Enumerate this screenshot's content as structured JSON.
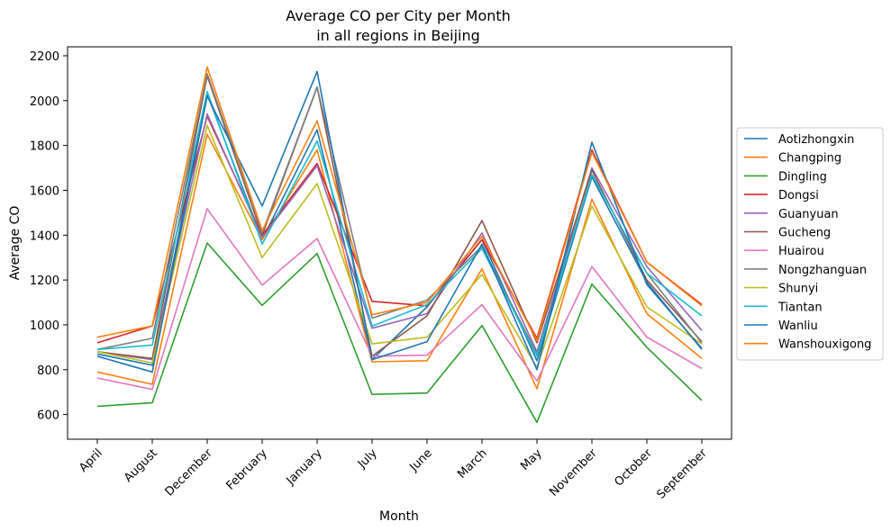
{
  "chart_data": {
    "type": "line",
    "title": "Average CO per City per Month",
    "subtitle": "in all regions in Beijing",
    "xlabel": "Month",
    "ylabel": "Average CO",
    "ylim": [
      490,
      2240
    ],
    "yticks": [
      600,
      800,
      1000,
      1200,
      1400,
      1600,
      1800,
      2000,
      2200
    ],
    "grid": false,
    "legend_position": "right",
    "categories": [
      "April",
      "August",
      "December",
      "February",
      "January",
      "July",
      "June",
      "March",
      "May",
      "November",
      "October",
      "September"
    ],
    "series": [
      {
        "name": "Aotizhongxin",
        "color": "#1f77b4",
        "values": [
          870,
          820,
          2030,
          1380,
          1870,
          845,
          1080,
          1380,
          840,
          1660,
          1190,
          890
        ]
      },
      {
        "name": "Changping",
        "color": "#ff7f0e",
        "values": [
          790,
          735,
          1850,
          1380,
          1780,
          835,
          840,
          1250,
          715,
          1560,
          1050,
          850
        ]
      },
      {
        "name": "Dingling",
        "color": "#2ca02c",
        "values": [
          637,
          652,
          1365,
          1087,
          1318,
          690,
          696,
          997,
          565,
          1182,
          900,
          663
        ]
      },
      {
        "name": "Dongsi",
        "color": "#d62728",
        "values": [
          920,
          995,
          1930,
          1400,
          1720,
          1105,
          1085,
          1380,
          940,
          1780,
          1280,
          1090
        ]
      },
      {
        "name": "Guanyuan",
        "color": "#9467bd",
        "values": [
          880,
          845,
          1940,
          1390,
          1710,
          985,
          1050,
          1410,
          880,
          1700,
          1260,
          975
        ]
      },
      {
        "name": "Gucheng",
        "color": "#8c564b",
        "values": [
          880,
          850,
          2110,
          1400,
          2060,
          860,
          1040,
          1465,
          920,
          1690,
          1200,
          925
        ]
      },
      {
        "name": "Huairou",
        "color": "#e377c2",
        "values": [
          763,
          712,
          1518,
          1177,
          1385,
          860,
          865,
          1090,
          750,
          1260,
          945,
          805
        ]
      },
      {
        "name": "Nongzhanguan",
        "color": "#7f7f7f",
        "values": [
          890,
          940,
          2120,
          1410,
          2060,
          1030,
          1110,
          1350,
          870,
          1670,
          1230,
          920
        ]
      },
      {
        "name": "Shunyi",
        "color": "#bcbd22",
        "values": [
          880,
          830,
          1890,
          1300,
          1630,
          915,
          945,
          1225,
          810,
          1530,
          1080,
          915
        ]
      },
      {
        "name": "Tiantan",
        "color": "#17becf",
        "values": [
          890,
          910,
          2040,
          1360,
          1820,
          995,
          1090,
          1340,
          860,
          1670,
          1230,
          1040
        ]
      },
      {
        "name": "Wanliu",
        "color": "#1f77b4",
        "values": [
          860,
          790,
          2020,
          1530,
          2130,
          845,
          925,
          1360,
          800,
          1815,
          1180,
          895
        ]
      },
      {
        "name": "Wanshouxigong",
        "color": "#ff7f0e",
        "values": [
          945,
          995,
          2150,
          1420,
          1910,
          1045,
          1100,
          1395,
          930,
          1770,
          1280,
          1085
        ]
      }
    ]
  }
}
